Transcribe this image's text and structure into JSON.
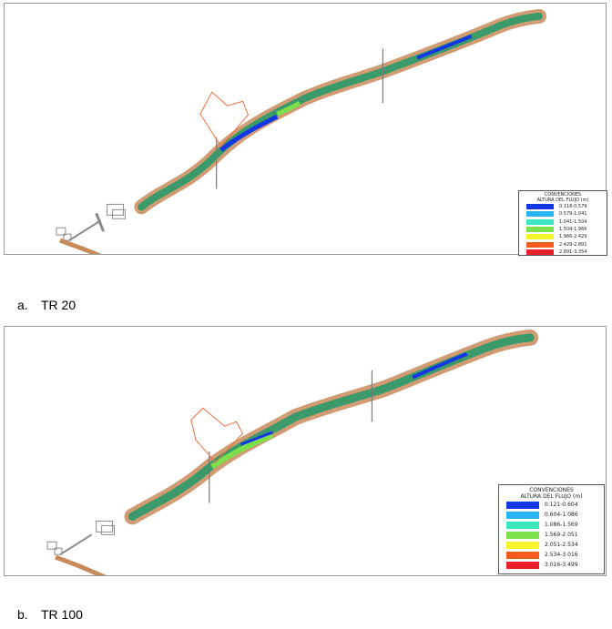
{
  "figures": [
    {
      "id": "a",
      "caption_letter": "a.",
      "caption_text": "TR 20",
      "legend": {
        "title_line1": "CONVENCIONES",
        "title_line2": "ALTURA DEL FLUJO (m)",
        "classes": [
          {
            "label": "0.118-0.579",
            "color": "#1437e6"
          },
          {
            "label": "0.579-1.041",
            "color": "#28b4f0"
          },
          {
            "label": "1.041-1.504",
            "color": "#3ce6c0"
          },
          {
            "label": "1.504-1.966",
            "color": "#7be04a"
          },
          {
            "label": "1.966-2.429",
            "color": "#f5f52c"
          },
          {
            "label": "2.429-2.891",
            "color": "#f25a1e"
          },
          {
            "label": "2.891-3.354",
            "color": "#ee1d2a"
          }
        ]
      }
    },
    {
      "id": "b",
      "caption_letter": "b.",
      "caption_text": "TR 100",
      "legend": {
        "title_line1": "CONVENCIONES",
        "title_line2": "ALTURA DEL FLUJO (m)",
        "classes": [
          {
            "label": "0.121-0.604",
            "color": "#1437e6"
          },
          {
            "label": "0.604-1.086",
            "color": "#28b4f0"
          },
          {
            "label": "1.086-1.569",
            "color": "#3ce6c0"
          },
          {
            "label": "1.569-2.051",
            "color": "#7be04a"
          },
          {
            "label": "2.051-2.534",
            "color": "#f5f52c"
          },
          {
            "label": "2.534-3.016",
            "color": "#f25a1e"
          },
          {
            "label": "3.016-3.499",
            "color": "#ee1d2a"
          }
        ]
      }
    }
  ],
  "colors": {
    "bank": "#c98a5a",
    "structure_gray": "#8a8a8a",
    "boundary_orange": "#f07040"
  }
}
